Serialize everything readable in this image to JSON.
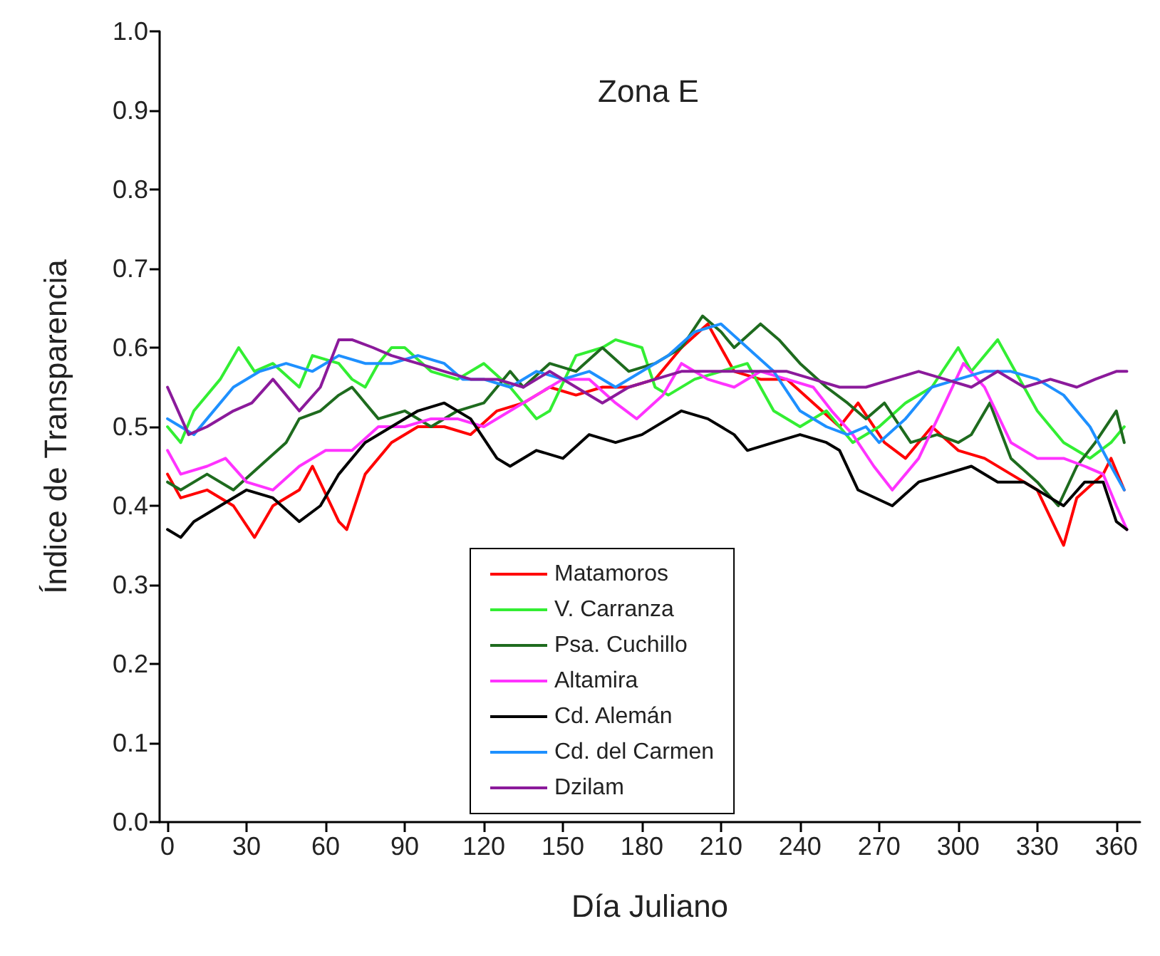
{
  "chart_data": {
    "type": "line",
    "title": "Zona E",
    "xlabel": "Día Juliano",
    "ylabel": "Índice de Transparencia",
    "xlim": [
      -3,
      369
    ],
    "xticks": [
      0,
      30,
      60,
      90,
      120,
      150,
      180,
      210,
      240,
      270,
      300,
      330,
      360
    ],
    "ylim": [
      0,
      1
    ],
    "yticks": [
      {
        "value": 0,
        "label": "0.0"
      },
      {
        "value": 0.1,
        "label": "0.1"
      },
      {
        "value": 0.2,
        "label": "0.2"
      },
      {
        "value": 0.3,
        "label": "0.3"
      },
      {
        "value": 0.4,
        "label": "0.4"
      },
      {
        "value": 0.5,
        "label": "0.5"
      },
      {
        "value": 0.6,
        "label": "0.6"
      },
      {
        "value": 0.7,
        "label": "0.7"
      },
      {
        "value": 0.8,
        "label": "0.8"
      },
      {
        "value": 0.9,
        "label": "0.9"
      },
      {
        "value": 1,
        "label": "1.0"
      }
    ],
    "legend": "bottom",
    "grid": false,
    "marker": "none",
    "line_style": "solid",
    "series": [
      {
        "name": "Matamoros",
        "color": "#ff0000",
        "x": [
          0,
          5,
          15,
          25,
          33,
          40,
          50,
          55,
          65,
          68,
          75,
          85,
          95,
          105,
          115,
          125,
          135,
          145,
          155,
          165,
          175,
          185,
          195,
          205,
          215,
          225,
          235,
          245,
          255,
          262,
          272,
          280,
          290,
          300,
          310,
          320,
          330,
          340,
          345,
          355,
          358,
          363
        ],
        "values": [
          0.44,
          0.41,
          0.42,
          0.4,
          0.36,
          0.4,
          0.42,
          0.45,
          0.38,
          0.37,
          0.44,
          0.48,
          0.5,
          0.5,
          0.49,
          0.52,
          0.53,
          0.55,
          0.54,
          0.55,
          0.55,
          0.56,
          0.6,
          0.63,
          0.57,
          0.56,
          0.56,
          0.53,
          0.5,
          0.53,
          0.48,
          0.46,
          0.5,
          0.47,
          0.46,
          0.44,
          0.42,
          0.35,
          0.41,
          0.44,
          0.46,
          0.42
        ]
      },
      {
        "name": "V. Carranza",
        "color": "#33ee33",
        "x": [
          0,
          5,
          10,
          20,
          27,
          33,
          40,
          50,
          55,
          65,
          70,
          75,
          80,
          85,
          90,
          100,
          110,
          120,
          130,
          140,
          145,
          155,
          165,
          170,
          180,
          185,
          190,
          200,
          210,
          220,
          230,
          240,
          250,
          260,
          270,
          280,
          290,
          300,
          305,
          315,
          320,
          330,
          340,
          350,
          358,
          363
        ],
        "values": [
          0.5,
          0.48,
          0.52,
          0.56,
          0.6,
          0.57,
          0.58,
          0.55,
          0.59,
          0.58,
          0.56,
          0.55,
          0.58,
          0.6,
          0.6,
          0.57,
          0.56,
          0.58,
          0.55,
          0.51,
          0.52,
          0.59,
          0.6,
          0.61,
          0.6,
          0.55,
          0.54,
          0.56,
          0.57,
          0.58,
          0.52,
          0.5,
          0.52,
          0.48,
          0.5,
          0.53,
          0.55,
          0.6,
          0.57,
          0.61,
          0.58,
          0.52,
          0.48,
          0.46,
          0.48,
          0.5
        ]
      },
      {
        "name": "Psa. Cuchillo",
        "color": "#1e6b1e",
        "x": [
          0,
          5,
          15,
          25,
          35,
          45,
          50,
          58,
          65,
          70,
          80,
          90,
          100,
          110,
          120,
          130,
          135,
          145,
          155,
          165,
          175,
          185,
          195,
          203,
          210,
          215,
          225,
          232,
          240,
          250,
          258,
          265,
          272,
          282,
          292,
          300,
          305,
          312,
          320,
          330,
          338,
          345,
          352,
          360,
          363
        ],
        "values": [
          0.43,
          0.42,
          0.44,
          0.42,
          0.45,
          0.48,
          0.51,
          0.52,
          0.54,
          0.55,
          0.51,
          0.52,
          0.5,
          0.52,
          0.53,
          0.57,
          0.55,
          0.58,
          0.57,
          0.6,
          0.57,
          0.58,
          0.6,
          0.64,
          0.62,
          0.6,
          0.63,
          0.61,
          0.58,
          0.55,
          0.53,
          0.51,
          0.53,
          0.48,
          0.49,
          0.48,
          0.49,
          0.53,
          0.46,
          0.43,
          0.4,
          0.45,
          0.48,
          0.52,
          0.48
        ]
      },
      {
        "name": "Altamira",
        "color": "#ff33ff",
        "x": [
          0,
          5,
          15,
          22,
          30,
          40,
          50,
          60,
          70,
          80,
          90,
          100,
          110,
          120,
          130,
          140,
          150,
          160,
          170,
          178,
          188,
          195,
          205,
          215,
          225,
          235,
          245,
          252,
          260,
          268,
          275,
          285,
          295,
          302,
          310,
          320,
          330,
          340,
          348,
          355,
          360,
          364
        ],
        "values": [
          0.47,
          0.44,
          0.45,
          0.46,
          0.43,
          0.42,
          0.45,
          0.47,
          0.47,
          0.5,
          0.5,
          0.51,
          0.51,
          0.5,
          0.52,
          0.54,
          0.56,
          0.56,
          0.53,
          0.51,
          0.54,
          0.58,
          0.56,
          0.55,
          0.57,
          0.56,
          0.55,
          0.52,
          0.49,
          0.45,
          0.42,
          0.46,
          0.53,
          0.58,
          0.55,
          0.48,
          0.46,
          0.46,
          0.45,
          0.44,
          0.4,
          0.37
        ]
      },
      {
        "name": "Cd. Alemán",
        "color": "#000000",
        "x": [
          0,
          5,
          10,
          20,
          30,
          40,
          50,
          58,
          65,
          75,
          85,
          95,
          105,
          115,
          125,
          130,
          140,
          150,
          160,
          170,
          180,
          195,
          205,
          215,
          220,
          230,
          240,
          250,
          255,
          262,
          275,
          285,
          295,
          305,
          315,
          325,
          335,
          340,
          348,
          355,
          360,
          364
        ],
        "values": [
          0.37,
          0.36,
          0.38,
          0.4,
          0.42,
          0.41,
          0.38,
          0.4,
          0.44,
          0.48,
          0.5,
          0.52,
          0.53,
          0.51,
          0.46,
          0.45,
          0.47,
          0.46,
          0.49,
          0.48,
          0.49,
          0.52,
          0.51,
          0.49,
          0.47,
          0.48,
          0.49,
          0.48,
          0.47,
          0.42,
          0.4,
          0.43,
          0.44,
          0.45,
          0.43,
          0.43,
          0.41,
          0.4,
          0.43,
          0.43,
          0.38,
          0.37
        ]
      },
      {
        "name": "Cd. del Carmen",
        "color": "#1e90ff",
        "x": [
          0,
          5,
          10,
          15,
          25,
          35,
          45,
          55,
          65,
          75,
          85,
          95,
          105,
          112,
          120,
          130,
          140,
          150,
          160,
          170,
          180,
          190,
          200,
          210,
          220,
          230,
          240,
          250,
          258,
          265,
          270,
          280,
          290,
          300,
          310,
          320,
          330,
          340,
          350,
          358,
          363
        ],
        "values": [
          0.51,
          0.5,
          0.49,
          0.51,
          0.55,
          0.57,
          0.58,
          0.57,
          0.59,
          0.58,
          0.58,
          0.59,
          0.58,
          0.56,
          0.56,
          0.55,
          0.57,
          0.56,
          0.57,
          0.55,
          0.57,
          0.59,
          0.62,
          0.63,
          0.6,
          0.57,
          0.52,
          0.5,
          0.49,
          0.5,
          0.48,
          0.51,
          0.55,
          0.56,
          0.57,
          0.57,
          0.56,
          0.54,
          0.5,
          0.45,
          0.42
        ]
      },
      {
        "name": "Dzilam",
        "color": "#8b1a9b",
        "x": [
          0,
          8,
          15,
          25,
          32,
          40,
          50,
          58,
          65,
          70,
          78,
          85,
          95,
          105,
          115,
          125,
          135,
          145,
          155,
          165,
          175,
          185,
          195,
          205,
          215,
          225,
          235,
          245,
          255,
          265,
          275,
          285,
          295,
          305,
          315,
          325,
          335,
          345,
          352,
          360,
          364
        ],
        "values": [
          0.55,
          0.49,
          0.5,
          0.52,
          0.53,
          0.56,
          0.52,
          0.55,
          0.61,
          0.61,
          0.6,
          0.59,
          0.58,
          0.57,
          0.56,
          0.56,
          0.55,
          0.57,
          0.55,
          0.53,
          0.55,
          0.56,
          0.57,
          0.57,
          0.57,
          0.57,
          0.57,
          0.56,
          0.55,
          0.55,
          0.56,
          0.57,
          0.56,
          0.55,
          0.57,
          0.55,
          0.56,
          0.55,
          0.56,
          0.57,
          0.57
        ]
      }
    ]
  }
}
